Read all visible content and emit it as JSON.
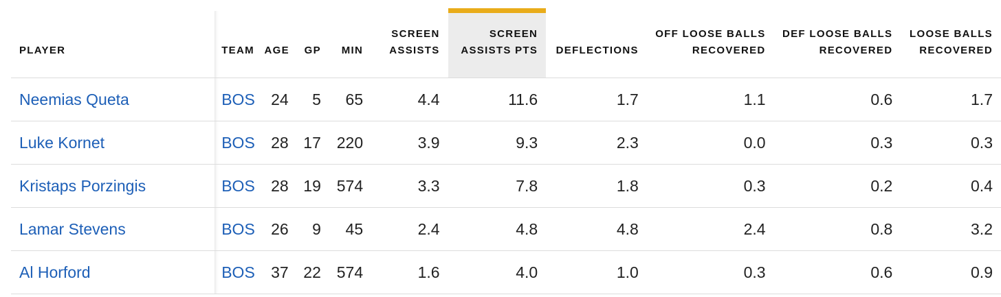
{
  "colors": {
    "link": "#1d5fb7",
    "sorted_header_bar": "#e9ac1a",
    "sorted_header_bg": "#ececec",
    "row_divider": "#dcdcdc",
    "text": "#222222"
  },
  "table": {
    "sorted_column": "screen_assists_pts",
    "headers": {
      "player": "PLAYER",
      "team": "TEAM",
      "age": "AGE",
      "gp": "GP",
      "min": "MIN",
      "screen_assists": [
        "SCREEN",
        "ASSISTS"
      ],
      "screen_assists_pts": [
        "SCREEN",
        "ASSISTS PTS"
      ],
      "deflections": "DEFLECTIONS",
      "off_loose_balls": [
        "OFF LOOSE BALLS",
        "RECOVERED"
      ],
      "def_loose_balls": [
        "DEF LOOSE BALLS",
        "RECOVERED"
      ],
      "loose_balls": [
        "LOOSE BALLS",
        "RECOVERED"
      ]
    },
    "rows": [
      {
        "player": "Neemias Queta",
        "team": "BOS",
        "age": "24",
        "gp": "5",
        "min": "65",
        "screen_assists": "4.4",
        "screen_assists_pts": "11.6",
        "deflections": "1.7",
        "off_loose_balls": "1.1",
        "def_loose_balls": "0.6",
        "loose_balls": "1.7"
      },
      {
        "player": "Luke Kornet",
        "team": "BOS",
        "age": "28",
        "gp": "17",
        "min": "220",
        "screen_assists": "3.9",
        "screen_assists_pts": "9.3",
        "deflections": "2.3",
        "off_loose_balls": "0.0",
        "def_loose_balls": "0.3",
        "loose_balls": "0.3"
      },
      {
        "player": "Kristaps Porzingis",
        "team": "BOS",
        "age": "28",
        "gp": "19",
        "min": "574",
        "screen_assists": "3.3",
        "screen_assists_pts": "7.8",
        "deflections": "1.8",
        "off_loose_balls": "0.3",
        "def_loose_balls": "0.2",
        "loose_balls": "0.4"
      },
      {
        "player": "Lamar Stevens",
        "team": "BOS",
        "age": "26",
        "gp": "9",
        "min": "45",
        "screen_assists": "2.4",
        "screen_assists_pts": "4.8",
        "deflections": "4.8",
        "off_loose_balls": "2.4",
        "def_loose_balls": "0.8",
        "loose_balls": "3.2"
      },
      {
        "player": "Al Horford",
        "team": "BOS",
        "age": "37",
        "gp": "22",
        "min": "574",
        "screen_assists": "1.6",
        "screen_assists_pts": "4.0",
        "deflections": "1.0",
        "off_loose_balls": "0.3",
        "def_loose_balls": "0.6",
        "loose_balls": "0.9"
      }
    ]
  }
}
